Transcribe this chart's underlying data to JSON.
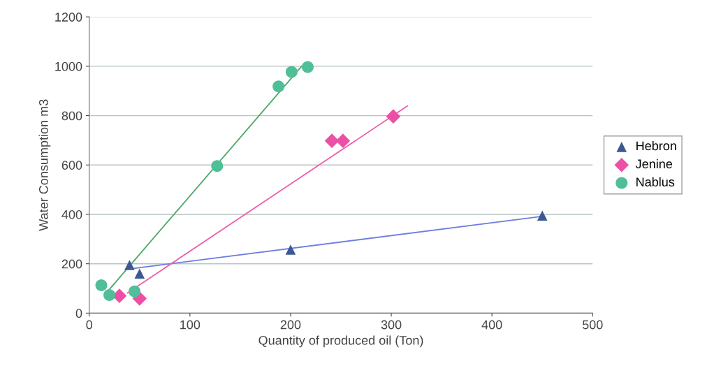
{
  "chart_data": {
    "type": "scatter",
    "xlabel": "Quantity of produced oil (Ton)",
    "ylabel": "Water Consumption m3",
    "xlim": [
      0,
      500
    ],
    "xticks": [
      0,
      100,
      200,
      300,
      400,
      500
    ],
    "ylim": [
      0,
      1200
    ],
    "yticks": [
      0,
      200,
      400,
      600,
      800,
      1000,
      1200
    ],
    "grid": "y",
    "legend": "right",
    "series": [
      {
        "name": "Hebron",
        "color": "#3b5a92",
        "marker": "triangle",
        "x": [
          40,
          50,
          200,
          450
        ],
        "values": [
          195,
          160,
          257,
          395
        ]
      },
      {
        "name": "Jenine",
        "color": "#ec4fa6",
        "marker": "diamond",
        "x": [
          30,
          50,
          241,
          252,
          302
        ],
        "values": [
          70,
          59,
          698,
          698,
          797
        ]
      },
      {
        "name": "Nablus",
        "color": "#4fbf99",
        "marker": "circle",
        "x": [
          12,
          20,
          45,
          127,
          188,
          201,
          217
        ],
        "values": [
          113,
          73,
          88,
          596,
          918,
          977,
          997
        ]
      },
      {
        "type": "line",
        "color": "#6d7ee0",
        "marker": "none",
        "x": [
          38,
          450
        ],
        "values": [
          178,
          392
        ]
      },
      {
        "type": "line",
        "color": "#ee5fa8",
        "marker": "none",
        "x": [
          38,
          316
        ],
        "values": [
          82,
          839
        ]
      },
      {
        "type": "line",
        "color": "#4ea86a",
        "marker": "none",
        "x": [
          17,
          211
        ],
        "values": [
          82,
          1000
        ]
      }
    ]
  }
}
